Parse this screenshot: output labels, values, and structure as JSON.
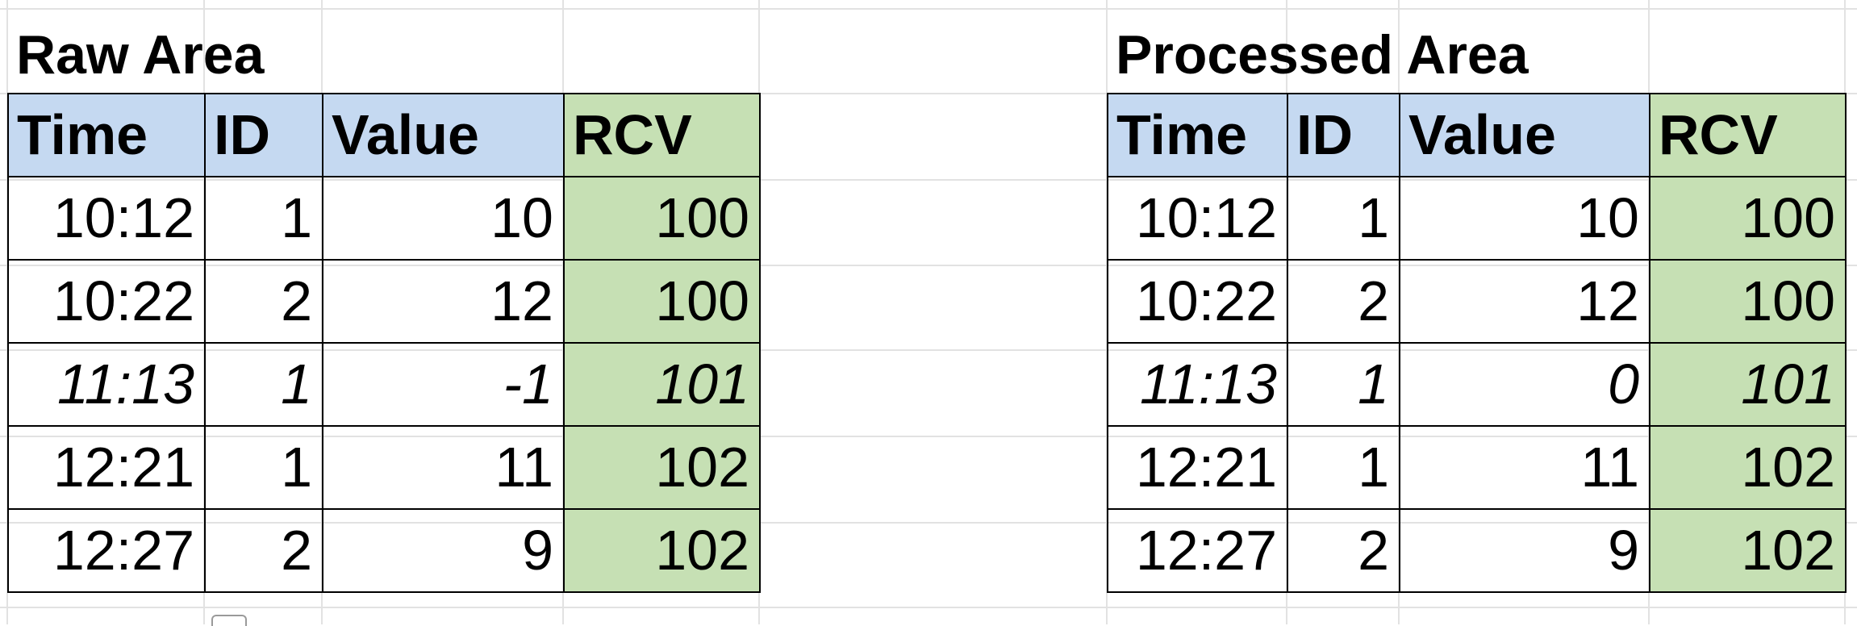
{
  "raw_area": {
    "title": "Raw Area",
    "headers": [
      "Time",
      "ID",
      "Value",
      "RCV"
    ],
    "rows": [
      {
        "time": "10:12",
        "id": "1",
        "value": "10",
        "rcv": "100",
        "italic": false
      },
      {
        "time": "10:22",
        "id": "2",
        "value": "12",
        "rcv": "100",
        "italic": false
      },
      {
        "time": "11:13",
        "id": "1",
        "value": "-1",
        "rcv": "101",
        "italic": true
      },
      {
        "time": "12:21",
        "id": "1",
        "value": "11",
        "rcv": "102",
        "italic": false
      },
      {
        "time": "12:27",
        "id": "2",
        "value": "9",
        "rcv": "102",
        "italic": false
      }
    ]
  },
  "processed_area": {
    "title": "Processed Area",
    "headers": [
      "Time",
      "ID",
      "Value",
      "RCV"
    ],
    "rows": [
      {
        "time": "10:12",
        "id": "1",
        "value": "10",
        "rcv": "100",
        "italic": false
      },
      {
        "time": "10:22",
        "id": "2",
        "value": "12",
        "rcv": "100",
        "italic": false
      },
      {
        "time": "11:13",
        "id": "1",
        "value": "0",
        "rcv": "101",
        "italic": true
      },
      {
        "time": "12:21",
        "id": "1",
        "value": "11",
        "rcv": "102",
        "italic": false
      },
      {
        "time": "12:27",
        "id": "2",
        "value": "9",
        "rcv": "102",
        "italic": false
      }
    ]
  },
  "colors": {
    "header_blue": "#c5d9f1",
    "rcv_green": "#c6e0b4",
    "gridline": "#e2e2e2"
  },
  "icons": {
    "paste_options": "clipboard-icon"
  }
}
